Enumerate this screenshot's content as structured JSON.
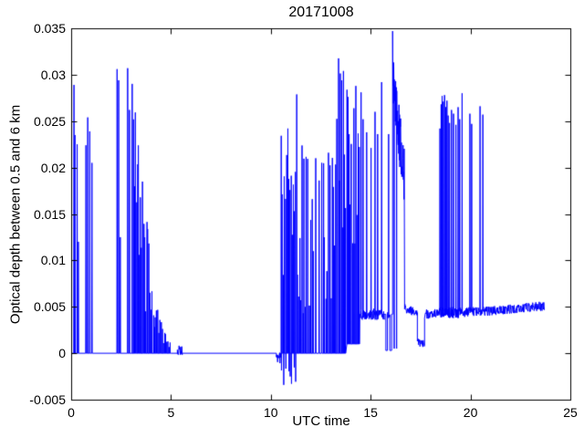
{
  "figure": {
    "background": "#ffffff",
    "axis_color": "#000000",
    "font_color": "#000000"
  },
  "chart_data": {
    "type": "line",
    "title": "20171008",
    "xlabel": "UTC time",
    "ylabel": "Optical depth between 0.5 and 6 km",
    "xlim": [
      0,
      25
    ],
    "ylim": [
      -0.005,
      0.035
    ],
    "xticks": [
      0,
      5,
      10,
      15,
      20,
      25
    ],
    "xtick_labels": [
      "0",
      "5",
      "10",
      "15",
      "20",
      "25"
    ],
    "yticks": [
      -0.005,
      0,
      0.005,
      0.01,
      0.015,
      0.02,
      0.025,
      0.03,
      0.035
    ],
    "ytick_labels": [
      "-0.005",
      "0",
      "0.005",
      "0.01",
      "0.015",
      "0.02",
      "0.025",
      "0.03",
      "0.035"
    ],
    "grid": false,
    "legend": null,
    "line_color": "#0000ff",
    "seed": 20171008,
    "series": {
      "name": "optical-depth",
      "segments": [
        {
          "t": "flat",
          "x0": 0.0,
          "x1": 0.08,
          "y": 0
        },
        {
          "t": "spikes",
          "base": 0,
          "w": 0.03,
          "spikes": [
            [
              0.14,
              0.0289
            ],
            [
              0.19,
              0.0235
            ],
            [
              0.3,
              0.0225
            ],
            [
              0.36,
              0.012
            ]
          ]
        },
        {
          "t": "flat",
          "x0": 0.38,
          "x1": 0.7,
          "y": 0
        },
        {
          "t": "spikes",
          "base": 0,
          "w": 0.03,
          "spikes": [
            [
              0.74,
              0.0224
            ],
            [
              0.83,
              0.0254
            ],
            [
              0.93,
              0.0239
            ],
            [
              1.04,
              0.0205
            ]
          ]
        },
        {
          "t": "flat",
          "x0": 1.07,
          "x1": 2.26,
          "y": 0
        },
        {
          "t": "spikes",
          "base": 0,
          "w": 0.025,
          "spikes": [
            [
              2.3,
              0.0306
            ],
            [
              2.38,
              0.0294
            ],
            [
              2.46,
              0.0125
            ]
          ]
        },
        {
          "t": "flat",
          "x0": 2.48,
          "x1": 2.79,
          "y": 0
        },
        {
          "t": "spikes",
          "base": 0,
          "w": 0.025,
          "spikes": [
            [
              2.83,
              0.0307
            ],
            [
              2.92,
              0.0262
            ]
          ]
        },
        {
          "t": "flat",
          "x0": 2.94,
          "x1": 3.04,
          "y": 0
        },
        {
          "t": "dense",
          "x0": 3.04,
          "x1": 3.55,
          "base": 0,
          "env0": 0.0302,
          "env1": 0.021,
          "n": 10,
          "vmin": 0.45
        },
        {
          "t": "dense",
          "x0": 3.55,
          "x1": 4.3,
          "base": 0,
          "env0": 0.0195,
          "env1": 0.004,
          "n": 14,
          "vmin": 0.25
        },
        {
          "t": "dense",
          "x0": 4.3,
          "x1": 5.0,
          "base": 0,
          "env0": 0.005,
          "env1": 0.0012,
          "n": 12,
          "vmin": 0.2
        },
        {
          "t": "flat",
          "x0": 5.0,
          "x1": 5.32,
          "y": 0
        },
        {
          "t": "band",
          "x0": 5.32,
          "x1": 5.56,
          "y0": 0.0004,
          "y1": 0.0002,
          "noise": 0.0006
        },
        {
          "t": "flat",
          "x0": 5.56,
          "x1": 10.28,
          "y": 0
        },
        {
          "t": "band",
          "x0": 10.28,
          "x1": 10.5,
          "y0": -0.0003,
          "y1": -0.0006,
          "noise": 0.0006
        },
        {
          "t": "densneg",
          "x0": 10.5,
          "x1": 11.25,
          "base": 0,
          "env0": 0.024,
          "env1": 0.0292,
          "n": 14,
          "vmin": 0.12,
          "neg": -0.0035,
          "negprob": 0.5
        },
        {
          "t": "dense",
          "x0": 11.25,
          "x1": 12.15,
          "base": 0,
          "env0": 0.0292,
          "env1": 0.0205,
          "n": 16,
          "vmin": 0.15
        },
        {
          "t": "spikes",
          "base": 0,
          "w": 0.03,
          "spikes": [
            [
              12.25,
              0.021
            ],
            [
              12.42,
              0.0186
            ],
            [
              12.55,
              0.0205
            ]
          ]
        },
        {
          "t": "dense",
          "x0": 12.6,
          "x1": 13.35,
          "base": 0,
          "env0": 0.0208,
          "env1": 0.026,
          "n": 12,
          "vmin": 0.2
        },
        {
          "t": "dense",
          "x0": 13.35,
          "x1": 13.78,
          "base": 0,
          "env0": 0.0331,
          "env1": 0.0296,
          "n": 8,
          "vmin": 0.4
        },
        {
          "t": "dense",
          "x0": 13.78,
          "x1": 14.45,
          "base": 0.001,
          "env0": 0.0282,
          "env1": 0.0287,
          "n": 12,
          "vmin": 0.3
        },
        {
          "t": "bandspikes",
          "x0": 14.45,
          "x1": 15.68,
          "y0": 0.0042,
          "y1": 0.0042,
          "noise": 0.0006,
          "w": 0.025,
          "spikes": [
            [
              14.52,
              0.0281
            ],
            [
              14.62,
              0.0252
            ],
            [
              14.8,
              0.0238
            ],
            [
              15.02,
              0.0221
            ],
            [
              15.22,
              0.026
            ],
            [
              15.35,
              0.0236
            ],
            [
              15.55,
              0.0292
            ]
          ]
        },
        {
          "t": "flat",
          "x0": 15.68,
          "x1": 15.76,
          "y": 0.0042
        },
        {
          "t": "flat",
          "x0": 15.76,
          "x1": 15.84,
          "y": 0.0003
        },
        {
          "t": "bandspikes",
          "x0": 15.84,
          "x1": 15.96,
          "y0": 0.0042,
          "y1": 0.0042,
          "noise": 0.0004,
          "w": 0.02,
          "spikes": [
            [
              15.9,
              0.0236
            ]
          ]
        },
        {
          "t": "flat",
          "x0": 15.96,
          "x1": 16.05,
          "y": 0.0003
        },
        {
          "t": "flat",
          "x0": 16.05,
          "x1": 16.1,
          "y": 0.0042
        },
        {
          "t": "jag",
          "x0": 16.1,
          "x1": 16.68,
          "y0": 0.0298,
          "y1": 0.019,
          "jit": 0.0033,
          "n": 42,
          "first": 0.0347,
          "drops": [
            16.18,
            16.3
          ]
        },
        {
          "t": "band",
          "x0": 16.7,
          "x1": 17.34,
          "y0": 0.0048,
          "y1": 0.0044,
          "noise": 0.0005
        },
        {
          "t": "band",
          "x0": 17.34,
          "x1": 17.7,
          "y0": 0.0012,
          "y1": 0.001,
          "noise": 0.0004
        },
        {
          "t": "band",
          "x0": 17.7,
          "x1": 18.42,
          "y0": 0.0042,
          "y1": 0.0043,
          "noise": 0.0005
        },
        {
          "t": "bandspikes",
          "x0": 18.42,
          "x1": 19.5,
          "y0": 0.0044,
          "y1": 0.0044,
          "noise": 0.0006,
          "w": 0.022,
          "spikes": [
            [
              18.47,
              0.0242
            ],
            [
              18.53,
              0.0268
            ],
            [
              18.58,
              0.0277
            ],
            [
              18.64,
              0.0271
            ],
            [
              18.7,
              0.0278
            ],
            [
              18.76,
              0.0265
            ],
            [
              18.82,
              0.0272
            ],
            [
              18.88,
              0.0256
            ],
            [
              18.95,
              0.0248
            ],
            [
              19.05,
              0.0262
            ],
            [
              19.15,
              0.0258
            ],
            [
              19.27,
              0.0246
            ],
            [
              19.38,
              0.0265
            ],
            [
              19.46,
              0.0252
            ]
          ]
        },
        {
          "t": "bandspikes",
          "x0": 19.5,
          "x1": 19.68,
          "y0": 0.0044,
          "y1": 0.0044,
          "noise": 0.0005,
          "w": 0.02,
          "spikes": [
            [
              19.58,
              0.028
            ]
          ]
        },
        {
          "t": "band",
          "x0": 19.68,
          "x1": 19.92,
          "y0": 0.0044,
          "y1": 0.0045,
          "noise": 0.0005
        },
        {
          "t": "bandspikes",
          "x0": 19.92,
          "x1": 20.12,
          "y0": 0.0045,
          "y1": 0.0045,
          "noise": 0.0005,
          "w": 0.02,
          "spikes": [
            [
              19.97,
              0.0258
            ],
            [
              20.06,
              0.0247
            ]
          ]
        },
        {
          "t": "band",
          "x0": 20.12,
          "x1": 20.4,
          "y0": 0.0045,
          "y1": 0.0045,
          "noise": 0.0005
        },
        {
          "t": "bandspikes",
          "x0": 20.4,
          "x1": 20.72,
          "y0": 0.0045,
          "y1": 0.0045,
          "noise": 0.0005,
          "w": 0.02,
          "spikes": [
            [
              20.48,
              0.0266
            ],
            [
              20.62,
              0.0257
            ]
          ]
        },
        {
          "t": "band",
          "x0": 20.72,
          "x1": 23.7,
          "y0": 0.0045,
          "y1": 0.0051,
          "noise": 0.0005
        }
      ]
    }
  }
}
